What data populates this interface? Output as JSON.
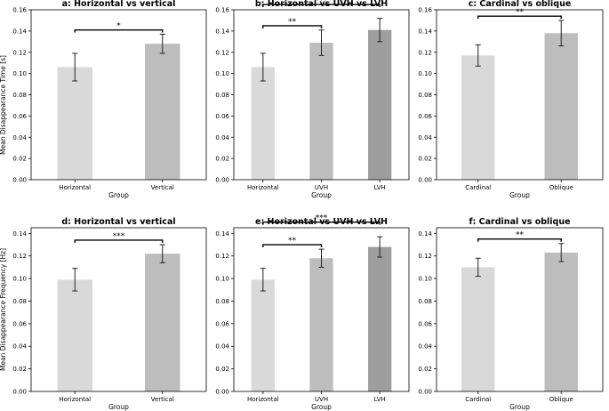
{
  "figure": {
    "top_ylabel": "Mean Disappearance Time [s]",
    "bottom_ylabel": "Mean Disappearance Frequency [Hz]"
  },
  "chart_data": [
    {
      "type": "bar",
      "title": "a: Horizontal vs vertical",
      "xlabel": "Group",
      "ylabel": "Mean Disappearance Time [s]",
      "categories": [
        "Horizontal",
        "Vertical"
      ],
      "values": [
        0.106,
        0.128
      ],
      "errors": [
        0.013,
        0.009
      ],
      "ylim": [
        0,
        0.16
      ],
      "yticks": [
        "0.00",
        "0.02",
        "0.04",
        "0.06",
        "0.08",
        "0.10",
        "0.12",
        "0.14",
        "0.16"
      ],
      "colors": [
        "#d9d9d9",
        "#bdbdbd"
      ],
      "significance": [
        {
          "from": 0,
          "to": 1,
          "label": "*"
        }
      ],
      "grid": false
    },
    {
      "type": "bar",
      "title": "b: Horizontal vs UVH vs LVH",
      "xlabel": "Group",
      "ylabel": "",
      "categories": [
        "Horizontal",
        "UVH",
        "LVH"
      ],
      "values": [
        0.106,
        0.129,
        0.141
      ],
      "errors": [
        0.013,
        0.012,
        0.011
      ],
      "ylim": [
        0,
        0.16
      ],
      "yticks": [
        "0.00",
        "0.02",
        "0.04",
        "0.06",
        "0.08",
        "0.10",
        "0.12",
        "0.14",
        "0.16"
      ],
      "colors": [
        "#d9d9d9",
        "#bdbdbd",
        "#9e9e9e"
      ],
      "significance": [
        {
          "from": 0,
          "to": 1,
          "label": "**"
        },
        {
          "from": 0,
          "to": 2,
          "label": "***"
        }
      ],
      "grid": false
    },
    {
      "type": "bar",
      "title": "c: Cardinal vs oblique",
      "xlabel": "Group",
      "ylabel": "",
      "categories": [
        "Cardinal",
        "Oblique"
      ],
      "values": [
        0.117,
        0.138
      ],
      "errors": [
        0.01,
        0.012
      ],
      "ylim": [
        0,
        0.16
      ],
      "yticks": [
        "0.00",
        "0.02",
        "0.04",
        "0.06",
        "0.08",
        "0.10",
        "0.12",
        "0.14",
        "0.16"
      ],
      "colors": [
        "#d9d9d9",
        "#bdbdbd"
      ],
      "significance": [
        {
          "from": 0,
          "to": 1,
          "label": "**"
        }
      ],
      "grid": false
    },
    {
      "type": "bar",
      "title": "d: Horizontal vs vertical",
      "xlabel": "Group",
      "ylabel": "Mean Disappearance Frequency [Hz]",
      "categories": [
        "Horizontal",
        "Vertical"
      ],
      "values": [
        0.099,
        0.122
      ],
      "errors": [
        0.01,
        0.008
      ],
      "ylim": [
        0,
        0.145
      ],
      "yticks": [
        "0.00",
        "0.02",
        "0.04",
        "0.06",
        "0.08",
        "0.10",
        "0.12",
        "0.14"
      ],
      "colors": [
        "#d9d9d9",
        "#bdbdbd"
      ],
      "significance": [
        {
          "from": 0,
          "to": 1,
          "label": "***"
        }
      ],
      "grid": false
    },
    {
      "type": "bar",
      "title": "e: Horizontal vs UVH vs LVH",
      "xlabel": "Group",
      "ylabel": "",
      "categories": [
        "Horizontal",
        "UVH",
        "LVH"
      ],
      "values": [
        0.099,
        0.118,
        0.128
      ],
      "errors": [
        0.01,
        0.008,
        0.009
      ],
      "ylim": [
        0,
        0.145
      ],
      "yticks": [
        "0.00",
        "0.02",
        "0.04",
        "0.06",
        "0.08",
        "0.10",
        "0.12",
        "0.14"
      ],
      "colors": [
        "#d9d9d9",
        "#bdbdbd",
        "#9e9e9e"
      ],
      "significance": [
        {
          "from": 0,
          "to": 1,
          "label": "**"
        },
        {
          "from": 0,
          "to": 2,
          "label": "***"
        }
      ],
      "grid": false
    },
    {
      "type": "bar",
      "title": "f: Cardinal vs oblique",
      "xlabel": "Group",
      "ylabel": "",
      "categories": [
        "Cardinal",
        "Oblique"
      ],
      "values": [
        0.11,
        0.123
      ],
      "errors": [
        0.008,
        0.008
      ],
      "ylim": [
        0,
        0.145
      ],
      "yticks": [
        "0.00",
        "0.02",
        "0.04",
        "0.06",
        "0.08",
        "0.10",
        "0.12",
        "0.14"
      ],
      "colors": [
        "#d9d9d9",
        "#bdbdbd"
      ],
      "significance": [
        {
          "from": 0,
          "to": 1,
          "label": "**"
        }
      ],
      "grid": false
    }
  ]
}
